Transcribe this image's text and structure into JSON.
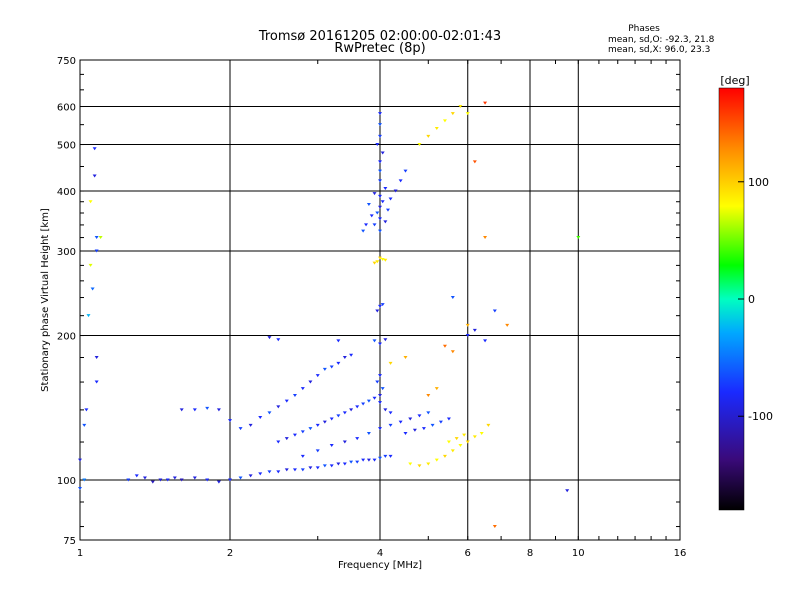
{
  "chart_data": {
    "type": "scatter",
    "title": "Tromsø 20161205 02:00:00-02:01:43",
    "subtitle": "RwPretec (8p)",
    "xlabel": "Frequency [MHz]",
    "ylabel": "Stationary phase Virtual Height [km]",
    "x_scale": "log2",
    "y_scale": "log",
    "xlim": [
      1,
      16
    ],
    "ylim": [
      75,
      750
    ],
    "x_ticks": [
      1,
      2,
      4,
      6,
      8,
      10,
      16
    ],
    "x_tick_labels": [
      "1",
      "2",
      "4",
      "6",
      "8",
      "10",
      "16"
    ],
    "x_grid": [
      2,
      4,
      6,
      8,
      10
    ],
    "y_ticks": [
      75,
      100,
      200,
      300,
      400,
      500,
      600,
      750
    ],
    "y_tick_labels": [
      "75",
      "100",
      "200",
      "300",
      "400",
      "500",
      "600",
      "750"
    ],
    "y_grid": [
      100,
      200,
      300,
      400,
      500,
      600
    ],
    "legend": {
      "title": "Phases",
      "lines": [
        "mean, sd,O: -92.3, 21.8",
        "mean, sd,X:  96.0, 23.3"
      ]
    },
    "colorbar": {
      "title": "[deg]",
      "range": [
        -180,
        180
      ],
      "ticks": [
        100,
        0,
        -100
      ],
      "tick_labels": [
        "100",
        "0",
        "-100"
      ]
    },
    "series": [
      {
        "name": "O-mode",
        "points": [
          [
            1.0,
            96,
            -90
          ],
          [
            1.02,
            100,
            -80
          ],
          [
            1.05,
            380,
            100
          ],
          [
            1.07,
            490,
            -100
          ],
          [
            1.07,
            430,
            -110
          ],
          [
            1.08,
            320,
            -90
          ],
          [
            1.08,
            300,
            -95
          ],
          [
            1.06,
            250,
            -85
          ],
          [
            1.04,
            220,
            -60
          ],
          [
            1.03,
            140,
            -100
          ],
          [
            1.02,
            130,
            -90
          ],
          [
            1.08,
            180,
            -110
          ],
          [
            1.08,
            160,
            -100
          ],
          [
            1.0,
            110,
            -110
          ],
          [
            1.25,
            100,
            -95
          ],
          [
            1.3,
            102,
            -100
          ],
          [
            1.35,
            101,
            -110
          ],
          [
            1.4,
            99,
            -120
          ],
          [
            1.45,
            100,
            -110
          ],
          [
            1.5,
            100,
            -100
          ],
          [
            1.55,
            101,
            -110
          ],
          [
            1.6,
            100,
            -120
          ],
          [
            1.7,
            101,
            -110
          ],
          [
            1.8,
            100,
            -100
          ],
          [
            1.9,
            99,
            -110
          ],
          [
            2.0,
            100,
            -100
          ],
          [
            2.1,
            101,
            -90
          ],
          [
            2.2,
            102,
            -110
          ],
          [
            2.3,
            103,
            -100
          ],
          [
            2.4,
            104,
            -95
          ],
          [
            2.5,
            104,
            -100
          ],
          [
            2.6,
            105,
            -110
          ],
          [
            2.7,
            105,
            -100
          ],
          [
            2.8,
            105,
            -95
          ],
          [
            2.9,
            106,
            -110
          ],
          [
            3.0,
            106,
            -100
          ],
          [
            3.1,
            107,
            -90
          ],
          [
            3.2,
            107,
            -100
          ],
          [
            3.3,
            108,
            -110
          ],
          [
            3.4,
            108,
            -100
          ],
          [
            3.5,
            109,
            -90
          ],
          [
            3.6,
            109,
            -95
          ],
          [
            3.7,
            110,
            -100
          ],
          [
            3.8,
            110,
            -110
          ],
          [
            3.9,
            110,
            -100
          ],
          [
            4.0,
            111,
            -90
          ],
          [
            4.1,
            112,
            -95
          ],
          [
            4.2,
            112,
            -100
          ],
          [
            1.6,
            140,
            -110
          ],
          [
            1.7,
            140,
            -100
          ],
          [
            1.8,
            141,
            -90
          ],
          [
            1.9,
            140,
            -110
          ],
          [
            2.0,
            133,
            -100
          ],
          [
            2.1,
            128,
            -95
          ],
          [
            2.2,
            130,
            -110
          ],
          [
            2.3,
            135,
            -100
          ],
          [
            2.4,
            138,
            -90
          ],
          [
            2.5,
            142,
            -110
          ],
          [
            2.6,
            146,
            -100
          ],
          [
            2.7,
            150,
            -95
          ],
          [
            2.8,
            155,
            -100
          ],
          [
            2.9,
            160,
            -110
          ],
          [
            3.0,
            165,
            -100
          ],
          [
            3.1,
            170,
            -90
          ],
          [
            3.2,
            172,
            -95
          ],
          [
            3.3,
            175,
            -100
          ],
          [
            3.4,
            180,
            -110
          ],
          [
            3.5,
            182,
            -100
          ],
          [
            2.5,
            120,
            -100
          ],
          [
            2.6,
            122,
            -110
          ],
          [
            2.7,
            124,
            -100
          ],
          [
            2.8,
            126,
            -95
          ],
          [
            2.9,
            128,
            -90
          ],
          [
            3.0,
            130,
            -100
          ],
          [
            3.1,
            132,
            -110
          ],
          [
            3.2,
            134,
            -100
          ],
          [
            3.3,
            136,
            -95
          ],
          [
            3.4,
            138,
            -100
          ],
          [
            3.5,
            140,
            -110
          ],
          [
            3.6,
            142,
            -100
          ],
          [
            3.7,
            144,
            -95
          ],
          [
            3.8,
            146,
            -90
          ],
          [
            3.9,
            148,
            -100
          ],
          [
            4.0,
            150,
            -110
          ],
          [
            2.8,
            112,
            -100
          ],
          [
            3.0,
            115,
            -95
          ],
          [
            3.2,
            118,
            -100
          ],
          [
            3.4,
            120,
            -110
          ],
          [
            3.6,
            122,
            -100
          ],
          [
            3.8,
            125,
            -90
          ],
          [
            4.0,
            128,
            -100
          ],
          [
            4.2,
            130,
            -95
          ],
          [
            4.4,
            132,
            -100
          ],
          [
            4.6,
            134,
            -110
          ],
          [
            4.8,
            136,
            -100
          ],
          [
            5.0,
            138,
            -90
          ],
          [
            4.0,
            330,
            -90
          ],
          [
            4.0,
            350,
            -100
          ],
          [
            4.0,
            370,
            -110
          ],
          [
            4.0,
            390,
            -100
          ],
          [
            3.9,
            340,
            -95
          ],
          [
            3.95,
            360,
            -90
          ],
          [
            4.05,
            380,
            -100
          ],
          [
            4.1,
            345,
            -110
          ],
          [
            3.85,
            355,
            -100
          ],
          [
            4.15,
            365,
            -95
          ],
          [
            3.8,
            375,
            -90
          ],
          [
            4.2,
            385,
            -100
          ],
          [
            3.9,
            395,
            -110
          ],
          [
            4.1,
            405,
            -100
          ],
          [
            4.0,
            420,
            -95
          ],
          [
            4.0,
            440,
            -90
          ],
          [
            4.0,
            460,
            -100
          ],
          [
            4.05,
            480,
            -110
          ],
          [
            3.95,
            500,
            -100
          ],
          [
            4.0,
            520,
            -95
          ],
          [
            4.0,
            550,
            -90
          ],
          [
            4.0,
            580,
            -100
          ],
          [
            4.3,
            400,
            -110
          ],
          [
            4.4,
            420,
            -100
          ],
          [
            4.5,
            440,
            -95
          ],
          [
            3.7,
            330,
            -90
          ],
          [
            3.75,
            340,
            -100
          ],
          [
            4.0,
            230,
            -100
          ],
          [
            3.95,
            225,
            -110
          ],
          [
            4.05,
            232,
            -95
          ],
          [
            3.9,
            195,
            -90
          ],
          [
            4.0,
            192,
            -100
          ],
          [
            4.1,
            196,
            -110
          ],
          [
            4.0,
            165,
            -100
          ],
          [
            3.95,
            160,
            -95
          ],
          [
            4.05,
            155,
            -90
          ],
          [
            4.0,
            145,
            -100
          ],
          [
            4.1,
            140,
            -110
          ],
          [
            4.2,
            138,
            -100
          ],
          [
            3.3,
            195,
            -100
          ],
          [
            2.4,
            198,
            -110
          ],
          [
            2.5,
            196,
            -100
          ],
          [
            4.5,
            125,
            -100
          ],
          [
            4.7,
            127,
            -110
          ],
          [
            4.9,
            128,
            -100
          ],
          [
            5.1,
            130,
            -90
          ],
          [
            5.3,
            132,
            -95
          ],
          [
            5.5,
            134,
            -100
          ],
          [
            6.0,
            200,
            -100
          ],
          [
            6.2,
            205,
            -110
          ],
          [
            5.6,
            240,
            -90
          ],
          [
            6.5,
            195,
            -100
          ],
          [
            6.8,
            225,
            -95
          ],
          [
            9.5,
            95,
            -110
          ]
        ]
      },
      {
        "name": "X-mode",
        "points": [
          [
            1.05,
            280,
            90
          ],
          [
            1.1,
            320,
            80
          ],
          [
            4.0,
            290,
            110
          ],
          [
            3.95,
            285,
            105
          ],
          [
            4.05,
            288,
            100
          ],
          [
            3.9,
            283,
            110
          ],
          [
            4.1,
            287,
            105
          ],
          [
            4.6,
            108,
            100
          ],
          [
            4.8,
            107,
            110
          ],
          [
            5.0,
            108,
            105
          ],
          [
            5.2,
            110,
            100
          ],
          [
            5.4,
            112,
            110
          ],
          [
            5.6,
            115,
            105
          ],
          [
            5.8,
            118,
            100
          ],
          [
            6.0,
            120,
            110
          ],
          [
            6.2,
            123,
            105
          ],
          [
            6.4,
            125,
            100
          ],
          [
            6.6,
            130,
            110
          ],
          [
            5.5,
            120,
            100
          ],
          [
            5.7,
            122,
            110
          ],
          [
            5.9,
            124,
            105
          ],
          [
            4.8,
            500,
            100
          ],
          [
            5.0,
            520,
            110
          ],
          [
            5.2,
            540,
            105
          ],
          [
            5.4,
            560,
            100
          ],
          [
            5.6,
            580,
            110
          ],
          [
            5.8,
            600,
            105
          ],
          [
            6.0,
            580,
            100
          ],
          [
            5.0,
            150,
            130
          ],
          [
            5.2,
            155,
            120
          ],
          [
            5.4,
            190,
            140
          ],
          [
            5.6,
            185,
            130
          ],
          [
            6.0,
            210,
            120
          ],
          [
            6.5,
            320,
            130
          ],
          [
            6.2,
            460,
            150
          ],
          [
            6.5,
            610,
            160
          ],
          [
            4.5,
            180,
            120
          ],
          [
            4.2,
            175,
            110
          ],
          [
            6.8,
            80,
            140
          ],
          [
            7.2,
            210,
            130
          ],
          [
            10.0,
            320,
            40
          ]
        ]
      }
    ]
  }
}
